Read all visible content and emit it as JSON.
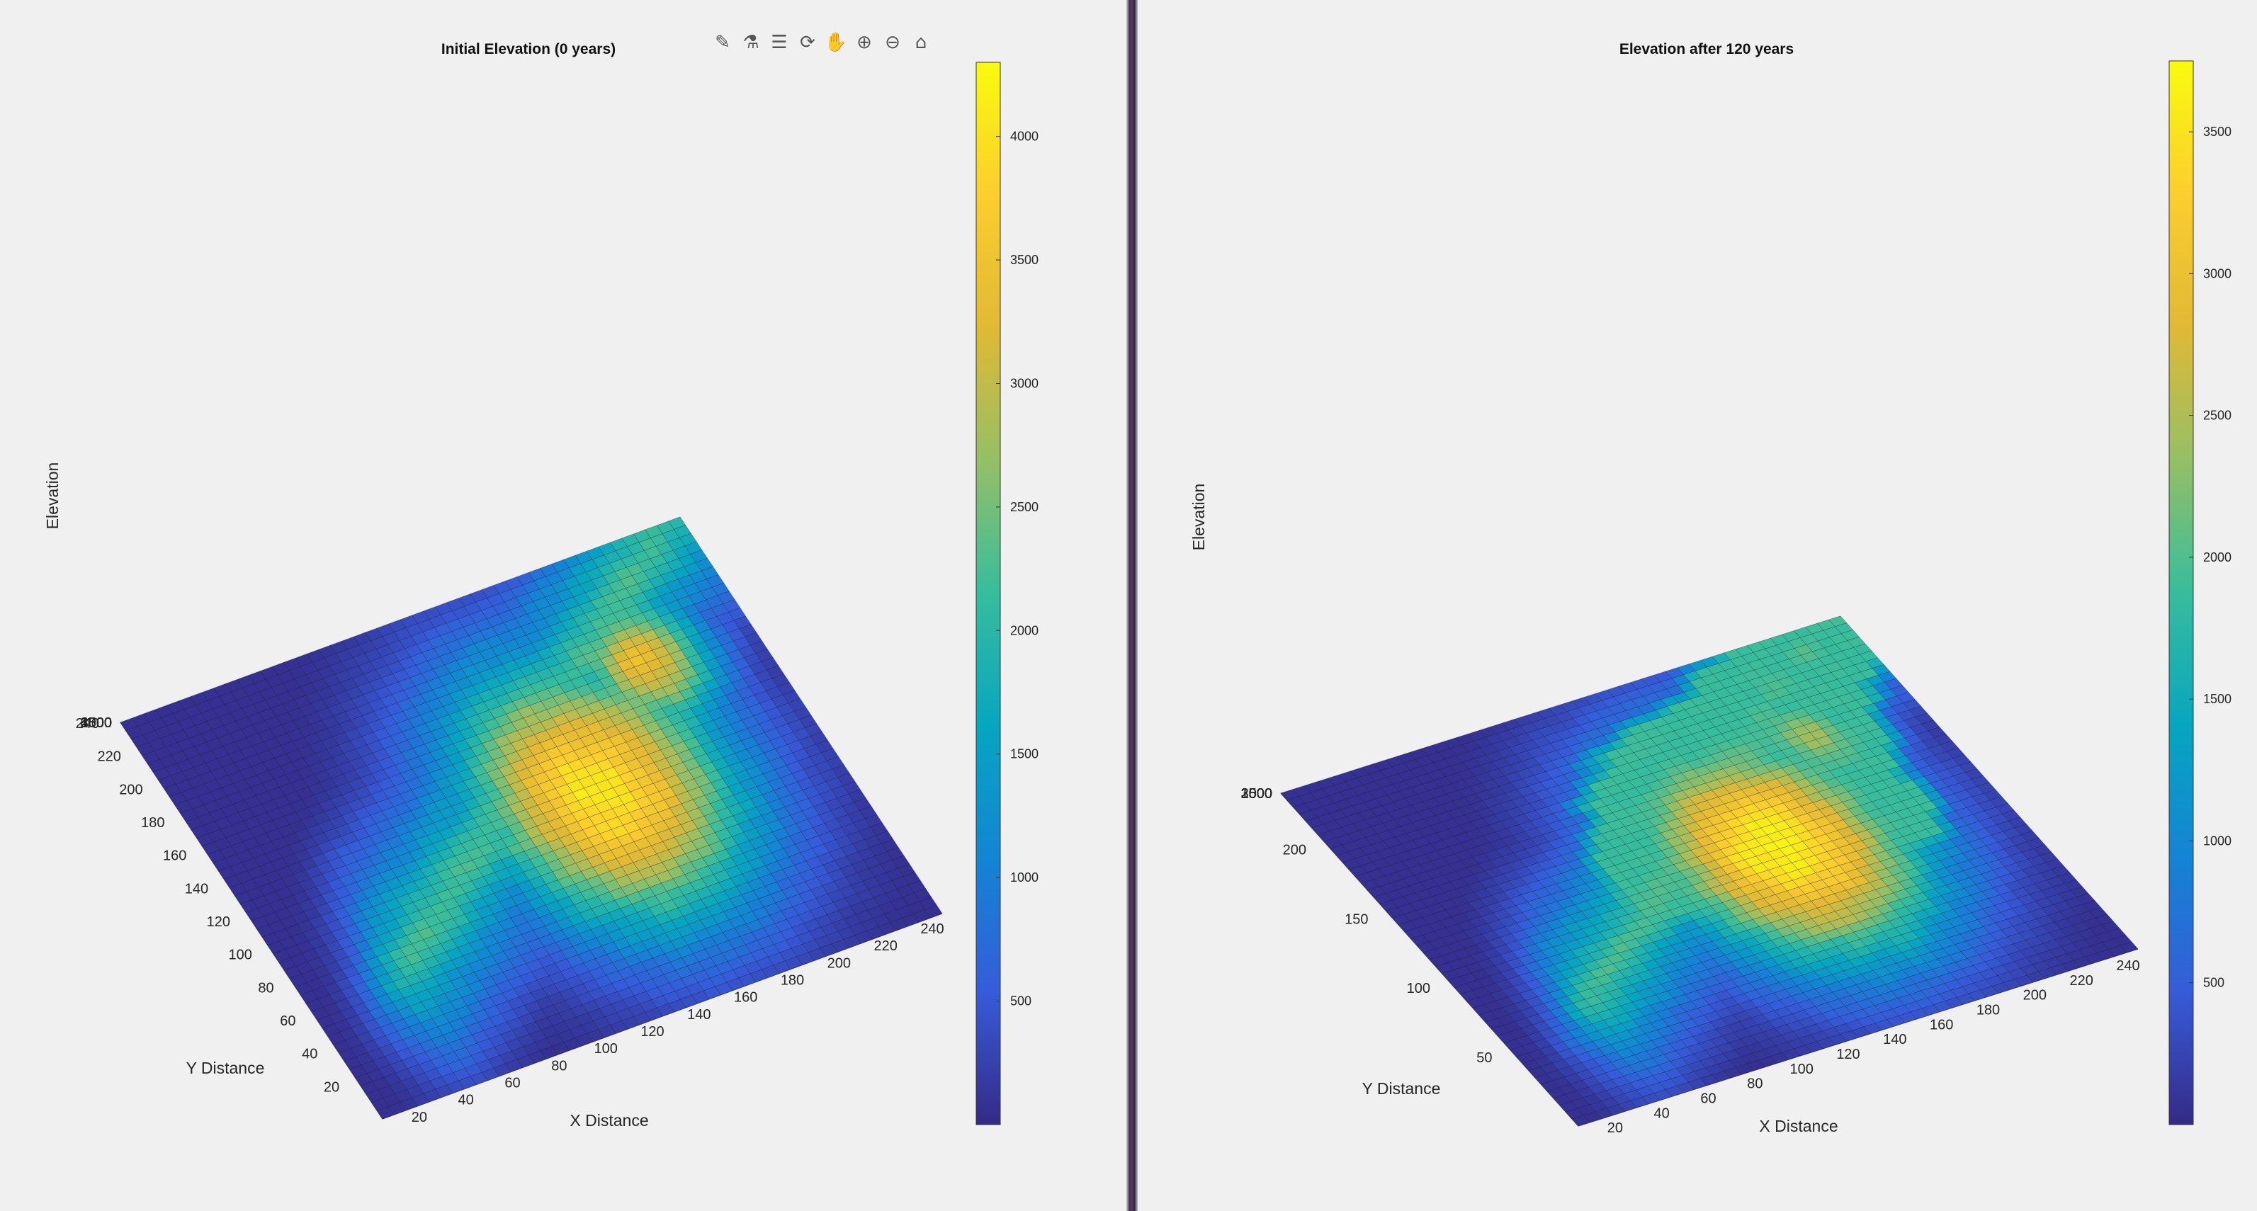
{
  "toolbar": {
    "icons": [
      "brush-icon",
      "data-tips-icon",
      "legend-icon",
      "rotate-3d-icon",
      "pan-hand-icon",
      "zoom-in-icon",
      "zoom-out-icon",
      "home-icon"
    ],
    "glyphs": [
      "✎",
      "⚗",
      "☰",
      "⟳",
      "✋",
      "⊕",
      "⊖",
      "⌂"
    ]
  },
  "chart_data": [
    {
      "type": "surface",
      "title": "Initial Elevation (0 years)",
      "xlabel": "X Distance",
      "ylabel": "Y Distance",
      "zlabel": "Elevation",
      "xticks": [
        20,
        40,
        60,
        80,
        100,
        120,
        140,
        160,
        180,
        200,
        220,
        240
      ],
      "yticks": [
        20,
        40,
        60,
        80,
        100,
        120,
        140,
        160,
        180,
        200,
        220,
        240
      ],
      "zticks": [
        500,
        1000,
        1500,
        2000,
        2500,
        3000,
        3500,
        4000
      ],
      "colorbar_ticks": [
        500,
        1000,
        1500,
        2000,
        2500,
        3000,
        3500,
        4000
      ],
      "zlim": [
        0,
        4300
      ],
      "colormap": "parula",
      "grid": true,
      "peaks": [
        {
          "x": 150,
          "y": 120,
          "elevation": 4100
        },
        {
          "x": 195,
          "y": 175,
          "elevation": 3500
        }
      ]
    },
    {
      "type": "surface",
      "title": "Elevation after 120 years",
      "xlabel": "X Distance",
      "ylabel": "Y Distance",
      "zlabel": "Elevation",
      "xticks": [
        20,
        40,
        60,
        80,
        100,
        120,
        140,
        160,
        180,
        200,
        220,
        240
      ],
      "yticks": [
        50,
        100,
        150,
        200
      ],
      "zticks": [
        500,
        1000,
        1500,
        2000,
        2500,
        3000,
        3500
      ],
      "colorbar_ticks": [
        500,
        1000,
        1500,
        2000,
        2500,
        3000,
        3500
      ],
      "zlim": [
        0,
        3750
      ],
      "colormap": "parula",
      "grid": true,
      "peaks": [
        {
          "x": 150,
          "y": 120,
          "elevation": 3700
        },
        {
          "x": 195,
          "y": 175,
          "elevation": 2400
        }
      ]
    }
  ]
}
